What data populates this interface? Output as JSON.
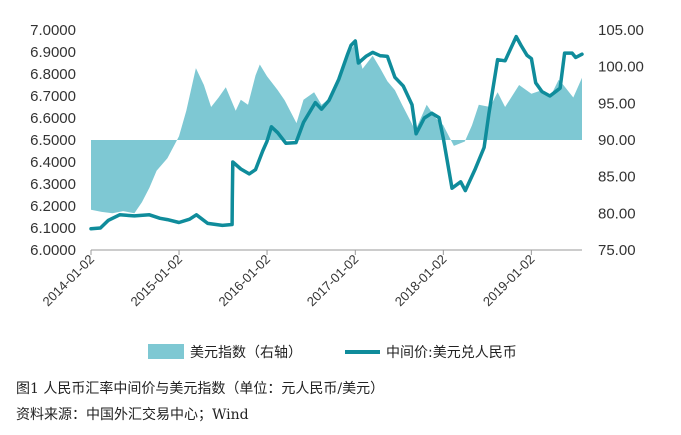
{
  "chart_data": {
    "type": "line",
    "title": "",
    "left_axis": {
      "ticks": [
        "6.0000",
        "6.1000",
        "6.2000",
        "6.3000",
        "6.4000",
        "6.5000",
        "6.6000",
        "6.7000",
        "6.8000",
        "6.9000",
        "7.0000"
      ],
      "ylim": [
        6.0,
        7.0
      ]
    },
    "right_axis": {
      "ticks": [
        "75.00",
        "80.00",
        "85.00",
        "90.00",
        "95.00",
        "100.00",
        "105.00"
      ],
      "ylim": [
        75,
        105
      ],
      "baseline": 90
    },
    "x_ticks": [
      "2014-01-02",
      "2015-01-02",
      "2016-01-02",
      "2017-01-02",
      "2018-01-02",
      "2019-01-02"
    ],
    "x_range": [
      "2014-01-02",
      "2019-07-31"
    ],
    "series": [
      {
        "name": "美元指数（右轴）",
        "axis": "right",
        "kind": "area",
        "color": "#7ec8d3",
        "points": [
          [
            "2014-01-02",
            80.5
          ],
          [
            "2014-02-15",
            80.2
          ],
          [
            "2014-04-01",
            80.0
          ],
          [
            "2014-05-15",
            80.3
          ],
          [
            "2014-07-01",
            80.0
          ],
          [
            "2014-08-01",
            81.5
          ],
          [
            "2014-09-01",
            83.5
          ],
          [
            "2014-10-01",
            85.8
          ],
          [
            "2014-11-15",
            87.5
          ],
          [
            "2015-01-02",
            90.5
          ],
          [
            "2015-02-01",
            94.0
          ],
          [
            "2015-03-13",
            99.8
          ],
          [
            "2015-04-15",
            97.5
          ],
          [
            "2015-05-15",
            94.5
          ],
          [
            "2015-06-15",
            95.8
          ],
          [
            "2015-07-15",
            97.2
          ],
          [
            "2015-08-25",
            94.0
          ],
          [
            "2015-09-15",
            95.5
          ],
          [
            "2015-10-15",
            94.8
          ],
          [
            "2015-11-15",
            98.8
          ],
          [
            "2015-12-03",
            100.3
          ],
          [
            "2016-01-02",
            98.7
          ],
          [
            "2016-02-15",
            96.8
          ],
          [
            "2016-03-15",
            95.4
          ],
          [
            "2016-05-03",
            92.3
          ],
          [
            "2016-06-01",
            95.5
          ],
          [
            "2016-07-15",
            96.5
          ],
          [
            "2016-08-15",
            94.8
          ],
          [
            "2016-09-15",
            95.6
          ],
          [
            "2016-10-25",
            98.6
          ],
          [
            "2016-11-20",
            101.2
          ],
          [
            "2017-01-03",
            103.2
          ],
          [
            "2017-02-01",
            99.7
          ],
          [
            "2017-03-15",
            101.5
          ],
          [
            "2017-04-15",
            99.8
          ],
          [
            "2017-05-15",
            98.0
          ],
          [
            "2017-06-15",
            96.8
          ],
          [
            "2017-07-15",
            94.8
          ],
          [
            "2017-09-08",
            91.3
          ],
          [
            "2017-10-25",
            94.8
          ],
          [
            "2017-12-01",
            93.0
          ],
          [
            "2018-01-02",
            92.0
          ],
          [
            "2018-02-15",
            89.2
          ],
          [
            "2018-04-01",
            89.8
          ],
          [
            "2018-05-01",
            92.0
          ],
          [
            "2018-05-29",
            94.8
          ],
          [
            "2018-07-15",
            94.5
          ],
          [
            "2018-08-15",
            96.5
          ],
          [
            "2018-09-15",
            94.5
          ],
          [
            "2018-11-12",
            97.5
          ],
          [
            "2019-01-02",
            96.3
          ],
          [
            "2019-02-15",
            96.8
          ],
          [
            "2019-03-20",
            95.8
          ],
          [
            "2019-04-25",
            98.2
          ],
          [
            "2019-05-15",
            97.5
          ],
          [
            "2019-06-25",
            95.8
          ],
          [
            "2019-07-31",
            98.5
          ]
        ]
      },
      {
        "name": "中间价:美元兑人民币",
        "axis": "left",
        "kind": "line",
        "color": "#0f8c9b",
        "points": [
          [
            "2014-01-02",
            6.097
          ],
          [
            "2014-02-10",
            6.1
          ],
          [
            "2014-03-15",
            6.135
          ],
          [
            "2014-05-01",
            6.16
          ],
          [
            "2014-07-01",
            6.155
          ],
          [
            "2014-09-01",
            6.16
          ],
          [
            "2014-10-15",
            6.144
          ],
          [
            "2014-11-15",
            6.138
          ],
          [
            "2015-01-02",
            6.125
          ],
          [
            "2015-02-15",
            6.14
          ],
          [
            "2015-03-15",
            6.16
          ],
          [
            "2015-05-01",
            6.121
          ],
          [
            "2015-07-01",
            6.112
          ],
          [
            "2015-08-10",
            6.116
          ],
          [
            "2015-08-11",
            6.229
          ],
          [
            "2015-08-13",
            6.4
          ],
          [
            "2015-09-15",
            6.368
          ],
          [
            "2015-10-20",
            6.346
          ],
          [
            "2015-11-15",
            6.365
          ],
          [
            "2015-12-15",
            6.45
          ],
          [
            "2016-01-02",
            6.494
          ],
          [
            "2016-01-20",
            6.56
          ],
          [
            "2016-02-15",
            6.533
          ],
          [
            "2016-03-20",
            6.485
          ],
          [
            "2016-05-01",
            6.488
          ],
          [
            "2016-06-01",
            6.58
          ],
          [
            "2016-07-20",
            6.67
          ],
          [
            "2016-08-15",
            6.64
          ],
          [
            "2016-09-15",
            6.68
          ],
          [
            "2016-10-25",
            6.775
          ],
          [
            "2016-12-01",
            6.89
          ],
          [
            "2016-12-15",
            6.93
          ],
          [
            "2017-01-02",
            6.95
          ],
          [
            "2017-01-15",
            6.85
          ],
          [
            "2017-02-15",
            6.88
          ],
          [
            "2017-03-15",
            6.898
          ],
          [
            "2017-04-15",
            6.883
          ],
          [
            "2017-05-15",
            6.88
          ],
          [
            "2017-06-15",
            6.785
          ],
          [
            "2017-07-20",
            6.745
          ],
          [
            "2017-08-25",
            6.66
          ],
          [
            "2017-09-11",
            6.528
          ],
          [
            "2017-10-15",
            6.6
          ],
          [
            "2017-11-15",
            6.622
          ],
          [
            "2017-12-15",
            6.602
          ],
          [
            "2018-01-02",
            6.508
          ],
          [
            "2018-02-07",
            6.281
          ],
          [
            "2018-03-15",
            6.31
          ],
          [
            "2018-04-03",
            6.27
          ],
          [
            "2018-05-15",
            6.37
          ],
          [
            "2018-06-20",
            6.466
          ],
          [
            "2018-07-10",
            6.62
          ],
          [
            "2018-08-15",
            6.865
          ],
          [
            "2018-09-15",
            6.86
          ],
          [
            "2018-10-31",
            6.97
          ],
          [
            "2018-11-20",
            6.93
          ],
          [
            "2018-12-15",
            6.885
          ],
          [
            "2019-01-02",
            6.87
          ],
          [
            "2019-01-20",
            6.76
          ],
          [
            "2019-02-15",
            6.72
          ],
          [
            "2019-03-20",
            6.7
          ],
          [
            "2019-04-15",
            6.722
          ],
          [
            "2019-05-01",
            6.736
          ],
          [
            "2019-05-20",
            6.895
          ],
          [
            "2019-06-20",
            6.895
          ],
          [
            "2019-07-05",
            6.875
          ],
          [
            "2019-07-31",
            6.89
          ]
        ]
      }
    ]
  },
  "legend": {
    "area_label": "美元指数（右轴）",
    "line_label": "中间价:美元兑人民币"
  },
  "caption": "图1  人民币汇率中间价与美元指数（单位：元人民币/美元）",
  "source": "资料来源：中国外汇交易中心；Wind"
}
